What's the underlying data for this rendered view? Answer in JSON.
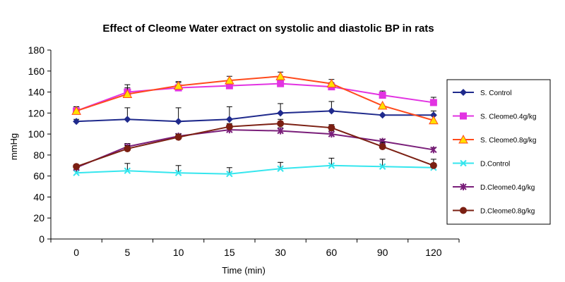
{
  "chart_data": {
    "type": "line",
    "title": "Effect of Cleome Water extract on systolic and diastolic BP in rats",
    "xlabel": "Time  (min)",
    "ylabel": "mmHg",
    "categories": [
      "0",
      "5",
      "10",
      "15",
      "30",
      "60",
      "90",
      "120"
    ],
    "ylim": [
      0,
      180
    ],
    "yticks": [
      "0",
      "20",
      "40",
      "60",
      "80",
      "100",
      "120",
      "140",
      "160",
      "180"
    ],
    "grid": false,
    "legend_position": "right",
    "series": [
      {
        "name": "S. Control",
        "color": "#1f2a8c",
        "marker": "diamond",
        "values": [
          112,
          114,
          112,
          114,
          120,
          122,
          118,
          118
        ],
        "errors": [
          2,
          11,
          13,
          12,
          9,
          9,
          0,
          4
        ]
      },
      {
        "name": "S. Cleome0.4g/kg",
        "color": "#e233e2",
        "marker": "square",
        "values": [
          122,
          140,
          144,
          146,
          148,
          145,
          137,
          130
        ],
        "errors": [
          4,
          7,
          5,
          5,
          3,
          4,
          4,
          5
        ]
      },
      {
        "name": "S. Cleome0.8g/kg",
        "color": "#ff4a1c",
        "fill": "#ffe000",
        "marker": "triangle",
        "values": [
          122,
          138,
          146,
          151,
          155,
          148,
          127,
          113
        ],
        "errors": [
          4,
          6,
          4,
          4,
          4,
          4,
          0,
          0
        ]
      },
      {
        "name": "D.Control",
        "color": "#35e6ee",
        "marker": "x",
        "values": [
          63,
          65,
          63,
          62,
          67,
          70,
          69,
          68
        ],
        "errors": [
          3,
          7,
          7,
          6,
          6,
          7,
          7,
          4
        ]
      },
      {
        "name": "D.Cleome0.4g/kg",
        "color": "#7a1f7a",
        "marker": "star",
        "values": [
          68,
          88,
          98,
          104,
          103,
          100,
          93,
          85
        ],
        "errors": [
          2,
          3,
          2,
          3,
          3,
          3,
          2,
          2
        ]
      },
      {
        "name": "D.Cleome0.8g/kg",
        "color": "#7b1f12",
        "marker": "circle",
        "values": [
          69,
          86,
          97,
          107,
          110,
          106,
          88,
          70
        ],
        "errors": [
          2,
          3,
          3,
          3,
          4,
          3,
          4,
          6
        ]
      }
    ]
  }
}
